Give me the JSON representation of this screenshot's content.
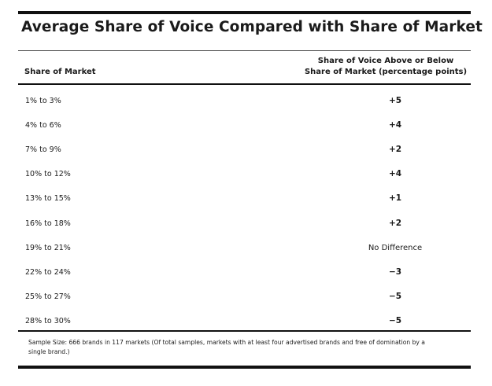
{
  "title": "Average Share of Voice Compared with Share of Market",
  "columns": {
    "left": "Share of Market",
    "right_line1": "Share of Voice Above or Below",
    "right_line2": "Share of Market (percentage points)"
  },
  "rows": [
    {
      "market": "1% to 3%",
      "voice": "+5"
    },
    {
      "market": "4% to 6%",
      "voice": "+4"
    },
    {
      "market": "7% to 9%",
      "voice": "+2"
    },
    {
      "market": "10% to 12%",
      "voice": "+4"
    },
    {
      "market": "13% to 15%",
      "voice": "+1"
    },
    {
      "market": "16% to 18%",
      "voice": "+2"
    },
    {
      "market": "19% to 21%",
      "voice": "No Difference"
    },
    {
      "market": "22% to 24%",
      "voice": "−3"
    },
    {
      "market": "25% to 27%",
      "voice": "−5"
    },
    {
      "market": "28% to 30%",
      "voice": "−5"
    }
  ],
  "footnote_line1": "Sample Size: 666 brands in 117 markets (Of total samples, markets with at least four advertised brands and free of domination by a",
  "footnote_line2": "single brand.)",
  "chart_data": {
    "type": "table",
    "title": "Average Share of Voice Compared with Share of Market",
    "columns": [
      "Share of Market",
      "Share of Voice Above or Below Share of Market (percentage points)"
    ],
    "rows": [
      [
        "1% to 3%",
        "+5"
      ],
      [
        "4% to 6%",
        "+4"
      ],
      [
        "7% to 9%",
        "+2"
      ],
      [
        "10% to 12%",
        "+4"
      ],
      [
        "13% to 15%",
        "+1"
      ],
      [
        "16% to 18%",
        "+2"
      ],
      [
        "19% to 21%",
        "No Difference"
      ],
      [
        "22% to 24%",
        "−3"
      ],
      [
        "25% to 27%",
        "−5"
      ],
      [
        "28% to 30%",
        "−5"
      ]
    ],
    "values": [
      5,
      4,
      2,
      4,
      1,
      2,
      0,
      -3,
      -5,
      -5
    ]
  }
}
